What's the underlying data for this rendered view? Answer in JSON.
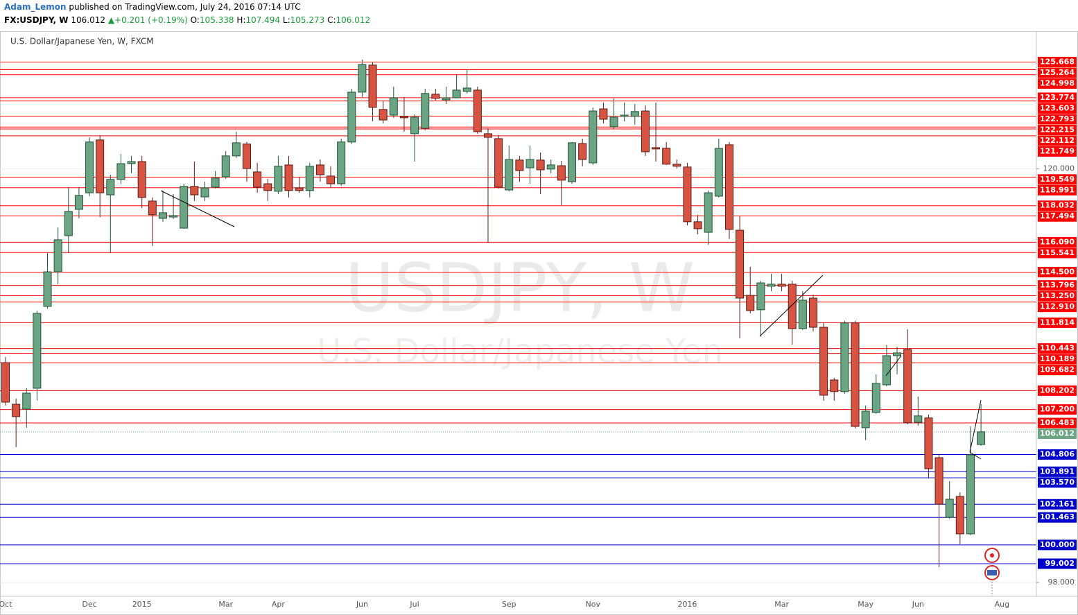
{
  "header": {
    "author": "Adam_Lemon",
    "published": "published on TradingView.com, July 24, 2016 07:14 UTC",
    "symbol": "FX:USDJPY, W",
    "last": "106.012",
    "change": "+0.201 (+0.19%)",
    "open_label": "O:",
    "open": "105.338",
    "high_label": "H:",
    "high": "107.494",
    "low_label": "L:",
    "low": "105.273",
    "close_label": "C:",
    "close": "106.012"
  },
  "chart_data": {
    "type": "candlestick",
    "title": "U.S. Dollar/Japanese Yen, W, FXCM",
    "watermark": [
      "USDJPY, W",
      "U.S. Dollar/Japanese Yen"
    ],
    "categories": [
      "Oct",
      null,
      null,
      null,
      null,
      null,
      null,
      null,
      "Dec",
      null,
      null,
      null,
      null,
      "2015",
      null,
      null,
      null,
      null,
      null,
      null,
      null,
      "Mar",
      null,
      null,
      null,
      null,
      "Apr",
      null,
      null,
      null,
      null,
      null,
      null,
      null,
      "Jun",
      null,
      null,
      null,
      null,
      "Jul",
      null,
      null,
      null,
      null,
      null,
      null,
      null,
      null,
      "Sep",
      null,
      null,
      null,
      null,
      null,
      null,
      null,
      "Nov",
      null,
      null,
      null,
      null,
      null,
      null,
      null,
      null,
      "2016",
      null,
      null,
      null,
      null,
      null,
      null,
      null,
      null,
      "Mar",
      null,
      null,
      null,
      null,
      null,
      null,
      null,
      "May",
      null,
      null,
      null,
      null,
      "Jun",
      null,
      null,
      null,
      null,
      null,
      null,
      null,
      "Aug"
    ],
    "open": [
      109.69,
      107.48,
      107.22,
      108.33,
      112.68,
      114.52,
      116.44,
      117.84,
      118.72,
      121.53,
      118.61,
      119.43,
      120.27,
      120.38,
      118.28,
      117.36,
      117.43,
      116.84,
      119.06,
      118.5,
      119.02,
      119.57,
      120.68,
      121.31,
      119.83,
      119.2,
      118.8,
      120.2,
      118.98,
      118.84,
      120.2,
      119.61,
      119.2,
      121.42,
      124.07,
      125.51,
      123.15,
      122.85,
      122.78,
      121.86,
      122.15,
      123.96,
      123.66,
      123.77,
      124.11,
      124.18,
      121.86,
      121.6,
      118.87,
      120.46,
      120.05,
      120.46,
      119.98,
      120.16,
      119.31,
      121.34,
      120.31,
      123.18,
      122.23,
      122.78,
      122.78,
      123.07,
      121.12,
      121.09,
      120.24,
      120.09,
      117.18,
      116.62,
      118.54,
      121.27,
      116.73,
      113.27,
      112.5,
      113.75,
      113.86,
      113.86,
      111.5,
      113.12,
      111.57,
      108.77,
      108.15,
      111.8,
      106.23,
      107.04,
      108.51,
      110.06,
      110.39,
      106.52,
      106.75,
      104.64,
      101.47,
      102.58,
      100.59,
      105.338,
      null,
      null
    ],
    "high": [
      109.99,
      107.78,
      108.33,
      112.46,
      115.52,
      116.88,
      119.02,
      119.02,
      121.67,
      121.78,
      119.68,
      120.79,
      120.68,
      120.68,
      118.47,
      118.84,
      118.65,
      119.2,
      120.38,
      119.31,
      119.87,
      120.94,
      121.97,
      121.42,
      120.31,
      119.46,
      120.68,
      120.68,
      119.57,
      120.31,
      120.49,
      120.13,
      121.6,
      124.25,
      125.8,
      125.65,
      123.63,
      124.36,
      123.81,
      122.89,
      124.25,
      124.25,
      124.36,
      124.99,
      125.29,
      124.36,
      122.15,
      121.78,
      121.23,
      120.68,
      121.23,
      120.86,
      120.49,
      120.42,
      121.42,
      121.6,
      123.26,
      123.52,
      123.74,
      123.52,
      123.44,
      123.37,
      123.52,
      121.42,
      120.49,
      120.31,
      117.55,
      118.84,
      121.6,
      121.42,
      117.47,
      114.78,
      114.04,
      114.41,
      114.41,
      114.04,
      113.49,
      113.31,
      111.83,
      108.88,
      111.91,
      111.91,
      107.41,
      109.07,
      110.62,
      110.54,
      111.46,
      107.89,
      106.93,
      104.83,
      103.39,
      102.8,
      106.3,
      107.494,
      null,
      null
    ],
    "low": [
      107.41,
      105.2,
      106.23,
      107.67,
      112.57,
      113.86,
      115.52,
      117.36,
      118.54,
      117.43,
      115.52,
      119.2,
      119.76,
      117.91,
      115.89,
      117.18,
      117.32,
      116.81,
      118.28,
      118.28,
      118.95,
      119.46,
      120.57,
      119.31,
      118.72,
      118.28,
      118.65,
      118.47,
      118.72,
      118.47,
      119.31,
      119.02,
      119.09,
      121.31,
      123.81,
      122.52,
      122.41,
      122.71,
      121.97,
      120.38,
      122.04,
      123.63,
      123.44,
      123.74,
      124.0,
      121.86,
      116.07,
      118.95,
      118.8,
      119.31,
      119.2,
      118.65,
      119.76,
      118.06,
      119.2,
      120.13,
      120.2,
      122.41,
      122.12,
      122.52,
      122.34,
      120.68,
      120.38,
      120.2,
      120.01,
      116.99,
      116.51,
      115.96,
      118.47,
      116.26,
      110.98,
      112.31,
      111.09,
      113.49,
      113.49,
      110.65,
      111.43,
      111.35,
      107.67,
      107.67,
      108.04,
      106.19,
      105.57,
      106.97,
      108.44,
      109.07,
      106.41,
      106.34,
      103.54,
      98.82,
      101.4,
      100.04,
      100.52,
      105.273,
      null,
      null
    ],
    "close": [
      107.59,
      106.82,
      108.07,
      112.31,
      114.52,
      116.22,
      117.73,
      118.58,
      121.42,
      118.72,
      119.43,
      120.27,
      120.38,
      118.47,
      117.55,
      117.66,
      117.51,
      119.06,
      118.61,
      118.98,
      119.5,
      120.68,
      121.38,
      120.01,
      119.02,
      118.84,
      120.13,
      118.84,
      118.84,
      120.13,
      119.68,
      119.2,
      121.42,
      124.07,
      125.54,
      123.26,
      122.59,
      123.77,
      122.71,
      122.74,
      124.0,
      123.74,
      123.77,
      124.18,
      124.29,
      121.97,
      121.67,
      119.02,
      120.49,
      119.9,
      120.49,
      119.94,
      120.2,
      119.39,
      121.38,
      120.49,
      123.07,
      122.63,
      122.74,
      122.85,
      123.04,
      120.9,
      121.05,
      120.24,
      120.13,
      117.18,
      116.81,
      118.72,
      121.08,
      116.77,
      113.12,
      112.46,
      113.93,
      113.86,
      113.75,
      111.5,
      113.01,
      111.57,
      107.96,
      108.15,
      111.8,
      106.3,
      107.11,
      108.59,
      110.06,
      110.21,
      106.49,
      106.86,
      104.05,
      102.17,
      102.43,
      100.59,
      104.79,
      106.012,
      null,
      null
    ],
    "up_color": "#6ba583",
    "down_color": "#d75442",
    "ylim": [
      97.27,
      127.31
    ],
    "yticks": [
      {
        "value": 98,
        "label": "98.000"
      },
      {
        "value": 120,
        "label": "120.000"
      }
    ],
    "grid": true,
    "last_price": {
      "value": 106.012,
      "label": "106.012",
      "color": "#6ba583"
    },
    "levels": [
      {
        "value": 125.668,
        "label": "125.668",
        "color": "#ff0000"
      },
      {
        "value": 125.264,
        "label": "125.264",
        "color": "#ff0000"
      },
      {
        "value": 124.998,
        "label": "124.998",
        "color": "#ff0000"
      },
      {
        "value": 123.774,
        "label": "123.774",
        "color": "#ff0000"
      },
      {
        "value": 123.603,
        "label": "123.603",
        "color": "#ff0000"
      },
      {
        "value": 122.793,
        "label": "122.793",
        "color": "#ff0000"
      },
      {
        "value": 122.215,
        "label": "122.215",
        "color": "#ff0000"
      },
      {
        "value": 122.112,
        "label": "122.112",
        "color": "#ff0000"
      },
      {
        "value": 121.749,
        "label": "121.749",
        "color": "#ff0000"
      },
      {
        "value": 119.549,
        "label": "119.549",
        "color": "#ff0000"
      },
      {
        "value": 118.991,
        "label": "118.991",
        "color": "#ff0000"
      },
      {
        "value": 118.032,
        "label": "118.032",
        "color": "#ff0000"
      },
      {
        "value": 117.494,
        "label": "117.494",
        "color": "#ff0000"
      },
      {
        "value": 116.09,
        "label": "116.090",
        "color": "#ff0000"
      },
      {
        "value": 115.541,
        "label": "115.541",
        "color": "#ff0000"
      },
      {
        "value": 114.5,
        "label": "114.500",
        "color": "#ff0000"
      },
      {
        "value": 113.796,
        "label": "113.796",
        "color": "#ff0000"
      },
      {
        "value": 113.25,
        "label": "113.250",
        "color": "#ff0000"
      },
      {
        "value": 112.91,
        "label": "112.910",
        "color": "#ff0000"
      },
      {
        "value": 111.814,
        "label": "111.814",
        "color": "#ff0000"
      },
      {
        "value": 110.443,
        "label": "110.443",
        "color": "#ff0000"
      },
      {
        "value": 110.189,
        "label": "110.189",
        "color": "#ff0000"
      },
      {
        "value": 109.682,
        "label": "109.682",
        "color": "#ff0000"
      },
      {
        "value": 108.202,
        "label": "108.202",
        "color": "#ff0000"
      },
      {
        "value": 107.2,
        "label": "107.200",
        "color": "#ff0000"
      },
      {
        "value": 106.483,
        "label": "106.483",
        "color": "#ff0000"
      },
      {
        "value": 104.806,
        "label": "104.806",
        "color": "#0000cc"
      },
      {
        "value": 103.891,
        "label": "103.891",
        "color": "#0000cc"
      },
      {
        "value": 103.57,
        "label": "103.570",
        "color": "#0000cc"
      },
      {
        "value": 102.161,
        "label": "102.161",
        "color": "#0000cc"
      },
      {
        "value": 101.463,
        "label": "101.463",
        "color": "#0000cc"
      },
      {
        "value": 100,
        "label": "100.000",
        "color": "#0000cc"
      },
      {
        "value": 99.002,
        "label": "99.002",
        "color": "#0000cc"
      }
    ]
  }
}
